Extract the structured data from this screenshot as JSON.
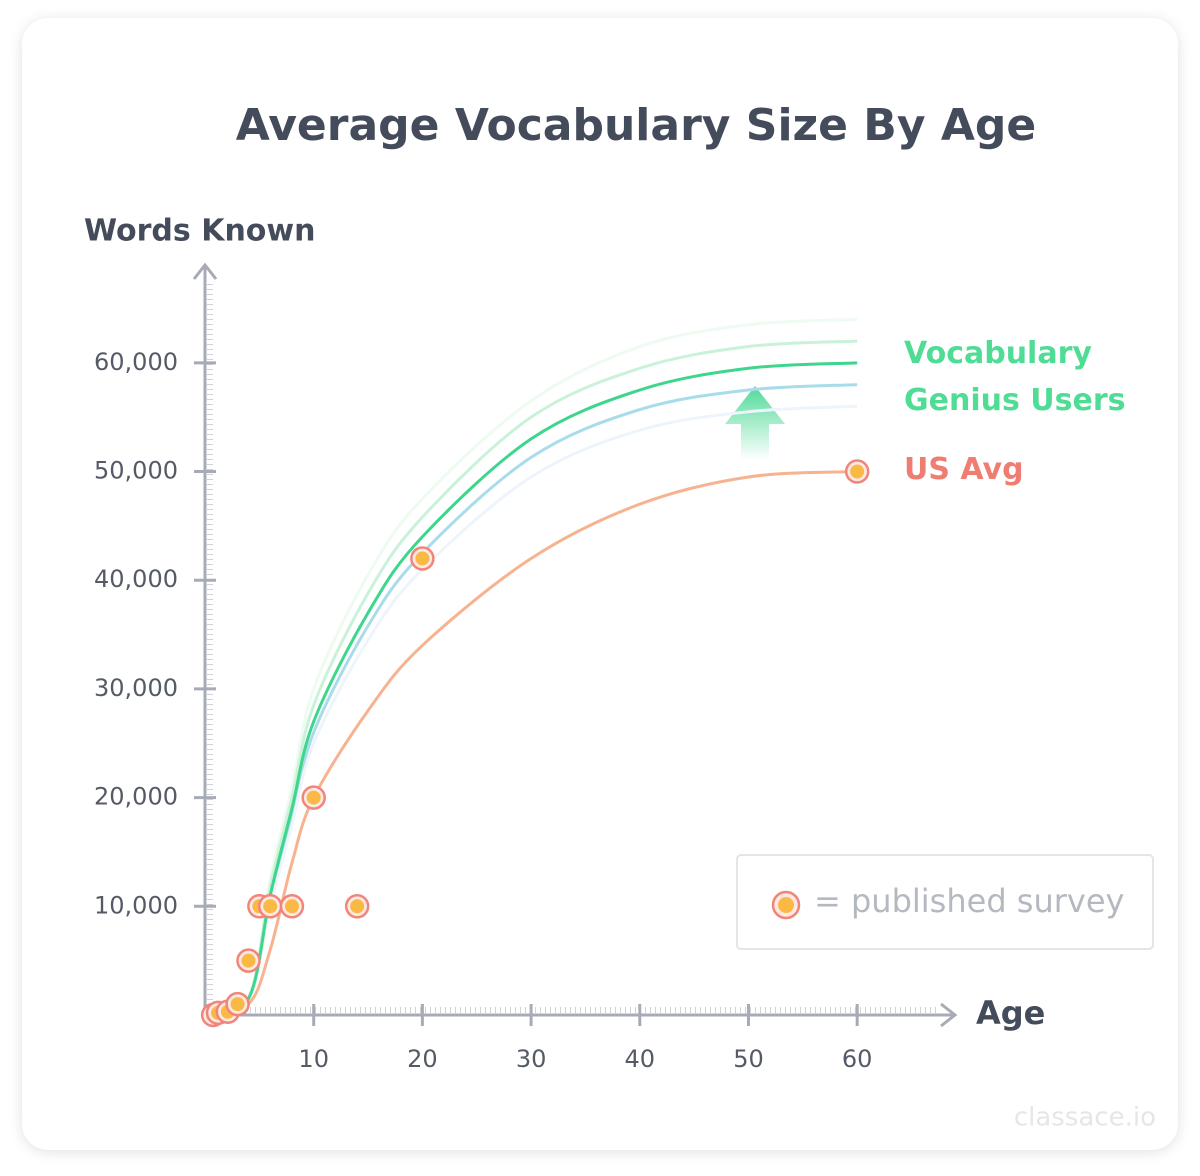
{
  "chart_data": {
    "type": "line",
    "title": "Average Vocabulary Size By Age",
    "y_label": "Words Known",
    "x_label": "Age",
    "xlim": [
      0,
      69
    ],
    "ylim": [
      0,
      69000
    ],
    "xticks": [
      10,
      20,
      30,
      40,
      50,
      60
    ],
    "yticks": [
      {
        "value": 10000,
        "label": "10,000"
      },
      {
        "value": 20000,
        "label": "20,000"
      },
      {
        "value": 30000,
        "label": "30,000"
      },
      {
        "value": 40000,
        "label": "40,000"
      },
      {
        "value": 50000,
        "label": "50,000"
      },
      {
        "value": 60000,
        "label": "60,000"
      }
    ],
    "series": [
      {
        "name": "Vocabulary Genius Users",
        "color": "#3dd68c",
        "label_color": "#4fdc95",
        "x": [
          0,
          4,
          6,
          8,
          10,
          15,
          20,
          30,
          40,
          50,
          60
        ],
        "values": [
          0,
          1500,
          11000,
          19000,
          27000,
          37000,
          44000,
          53000,
          57500,
          59500,
          60000
        ]
      },
      {
        "name": "US Avg",
        "color": "#f7b38f",
        "label_color": "#f07d72",
        "x": [
          0,
          4,
          6,
          8,
          10,
          15,
          20,
          30,
          40,
          50,
          60
        ],
        "values": [
          0,
          1000,
          6000,
          14000,
          20000,
          28000,
          34000,
          42000,
          47000,
          49500,
          50000
        ]
      }
    ],
    "bands": [
      {
        "color": "#eefbf1",
        "x": [
          0,
          4,
          6,
          8,
          10,
          15,
          20,
          30,
          40,
          50,
          60
        ],
        "values": [
          0,
          1600,
          12500,
          21000,
          30000,
          40500,
          47500,
          56500,
          61500,
          63500,
          64000
        ]
      },
      {
        "color": "#c9f2d9",
        "x": [
          0,
          4,
          6,
          8,
          10,
          15,
          20,
          30,
          40,
          50,
          60
        ],
        "values": [
          0,
          1550,
          11800,
          20000,
          28500,
          38800,
          45800,
          55000,
          59500,
          61500,
          62000
        ]
      },
      {
        "color": "#a9dcea",
        "x": [
          0,
          4,
          6,
          8,
          10,
          15,
          20,
          30,
          40,
          50,
          60
        ],
        "values": [
          0,
          1450,
          10500,
          18200,
          26000,
          35800,
          42500,
          51300,
          55700,
          57500,
          58000
        ]
      },
      {
        "color": "#eef4fb",
        "x": [
          0,
          4,
          6,
          8,
          10,
          15,
          20,
          30,
          40,
          50,
          60
        ],
        "values": [
          0,
          1400,
          10000,
          17500,
          25000,
          34500,
          41000,
          49500,
          53800,
          55500,
          56000
        ]
      }
    ],
    "points": {
      "name": "= published survey",
      "fill": "#f9b944",
      "stroke": "#f0857a",
      "x": [
        0.75,
        1.2,
        2.1,
        3,
        4,
        5,
        6,
        8,
        10,
        14,
        20,
        60
      ],
      "values": [
        0,
        200,
        300,
        1000,
        5000,
        10000,
        10000,
        10000,
        20000,
        10000,
        42000,
        50000
      ]
    }
  },
  "watermark": "classace.io"
}
